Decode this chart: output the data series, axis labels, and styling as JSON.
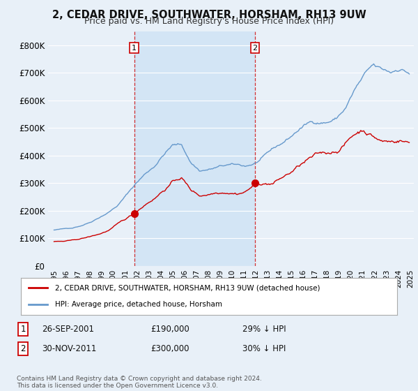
{
  "title": "2, CEDAR DRIVE, SOUTHWATER, HORSHAM, RH13 9UW",
  "subtitle": "Price paid vs. HM Land Registry's House Price Index (HPI)",
  "background_color": "#e8f0f8",
  "plot_bg_color": "#e8f0f8",
  "shaded_bg_color": "#d0e4f5",
  "grid_color": "#ffffff",
  "sale1_date": "26-SEP-2001",
  "sale1_price": "£190,000",
  "sale1_hpi_diff": "29% ↓ HPI",
  "sale2_date": "30-NOV-2011",
  "sale2_price": "£300,000",
  "sale2_hpi_diff": "30% ↓ HPI",
  "legend_label_red": "2, CEDAR DRIVE, SOUTHWATER, HORSHAM, RH13 9UW (detached house)",
  "legend_label_blue": "HPI: Average price, detached house, Horsham",
  "footer": "Contains HM Land Registry data © Crown copyright and database right 2024.\nThis data is licensed under the Open Government Licence v3.0.",
  "red_color": "#cc0000",
  "blue_color": "#6699cc",
  "ylim": [
    0,
    850000
  ],
  "yticks": [
    0,
    100000,
    200000,
    300000,
    400000,
    500000,
    600000,
    700000,
    800000
  ],
  "ytick_labels": [
    "£0",
    "£100K",
    "£200K",
    "£300K",
    "£400K",
    "£500K",
    "£600K",
    "£700K",
    "£800K"
  ],
  "sale1_x": 2001.75,
  "sale2_x": 2011.917
}
